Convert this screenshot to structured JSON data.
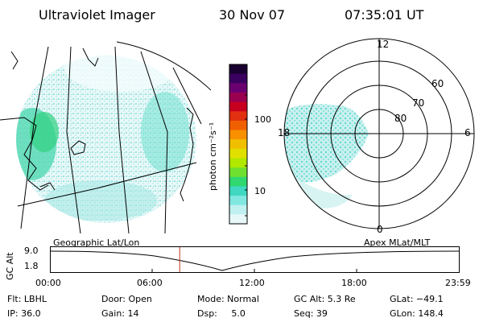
{
  "header": {
    "instrument": "Ultraviolet Imager",
    "date": "30 Nov 07",
    "time": "07:35:01 UT"
  },
  "colorbar": {
    "label": "photon cm⁻²s⁻¹",
    "ticks": [
      "100",
      "10"
    ],
    "colors": [
      "#1a0030",
      "#3a0060",
      "#6a0070",
      "#9a0050",
      "#c80020",
      "#e03010",
      "#f06000",
      "#f89000",
      "#f0c000",
      "#e0e000",
      "#b0e800",
      "#70e030",
      "#30d870",
      "#40d8c0",
      "#80e8e0",
      "#c0f0f0",
      "#e8f8f8"
    ]
  },
  "polar_plot": {
    "mlt_labels": {
      "top": "12",
      "left": "18",
      "right": "6",
      "bottom": "0"
    },
    "lat_labels": [
      "80",
      "70",
      "60"
    ]
  },
  "timeline": {
    "left_label": "Geographic Lat/Lon",
    "right_label": "Apex MLat/MLT",
    "axis_title": "GC Alt",
    "y_ticks": [
      "9.0",
      "1.8"
    ],
    "x_ticks": [
      "00:00",
      "06:00",
      "12:00",
      "18:00",
      "23:59"
    ],
    "current_fraction": 0.316,
    "marker_color": "#c03020"
  },
  "info": {
    "filter": "Flt: LBHL",
    "door": "Door: Open",
    "mode": "Mode: Normal",
    "gc_alt": "GC Alt: 5.3 Re",
    "glat": "GLat: −49.1",
    "ip": "IP: 36.0",
    "gain": "Gain: 14",
    "dsp": "Dsp:     5.0",
    "seq": "Seq: 39",
    "glon": "GLon: 148.4"
  }
}
